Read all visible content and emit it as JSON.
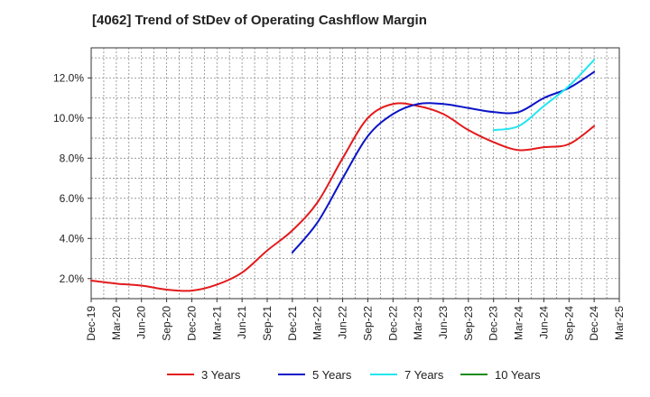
{
  "chart_data": {
    "type": "line",
    "title": "[4062]  Trend of StDev of Operating Cashflow Margin",
    "xlabel": "",
    "ylabel": "",
    "x_ticks": [
      "Dec-19",
      "Mar-20",
      "Jun-20",
      "Sep-20",
      "Dec-20",
      "Mar-21",
      "Jun-21",
      "Sep-21",
      "Dec-21",
      "Mar-22",
      "Jun-22",
      "Sep-22",
      "Dec-22",
      "Mar-23",
      "Jun-23",
      "Sep-23",
      "Dec-23",
      "Mar-24",
      "Jun-24",
      "Sep-24",
      "Dec-24",
      "Mar-25"
    ],
    "ylim": [
      1.0,
      13.5
    ],
    "y_ticks": [
      {
        "value": 2,
        "label": "2.0%"
      },
      {
        "value": 4,
        "label": "4.0%"
      },
      {
        "value": 6,
        "label": "6.0%"
      },
      {
        "value": 8,
        "label": "8.0%"
      },
      {
        "value": 10,
        "label": "10.0%"
      },
      {
        "value": 12,
        "label": "12.0%"
      }
    ],
    "grid": true,
    "legend_position": "bottom",
    "series": [
      {
        "name": "3 Years",
        "color": "#e31a1c",
        "points": [
          [
            "Dec-19",
            1.9
          ],
          [
            "Mar-20",
            1.75
          ],
          [
            "Jun-20",
            1.65
          ],
          [
            "Sep-20",
            1.45
          ],
          [
            "Dec-20",
            1.4
          ],
          [
            "Mar-21",
            1.7
          ],
          [
            "Jun-21",
            2.3
          ],
          [
            "Sep-21",
            3.4
          ],
          [
            "Dec-21",
            4.4
          ],
          [
            "Mar-22",
            5.8
          ],
          [
            "Jun-22",
            8.0
          ],
          [
            "Sep-22",
            10.0
          ],
          [
            "Dec-22",
            10.7
          ],
          [
            "Mar-23",
            10.6
          ],
          [
            "Jun-23",
            10.2
          ],
          [
            "Sep-23",
            9.4
          ],
          [
            "Dec-23",
            8.8
          ],
          [
            "Mar-24",
            8.4
          ],
          [
            "Jun-24",
            8.55
          ],
          [
            "Sep-24",
            8.7
          ],
          [
            "Dec-24",
            9.6
          ]
        ]
      },
      {
        "name": "5 Years",
        "color": "#0a14c8",
        "points": [
          [
            "Dec-21",
            3.3
          ],
          [
            "Mar-22",
            4.8
          ],
          [
            "Jun-22",
            7.0
          ],
          [
            "Sep-22",
            9.1
          ],
          [
            "Dec-22",
            10.2
          ],
          [
            "Mar-23",
            10.7
          ],
          [
            "Jun-23",
            10.7
          ],
          [
            "Sep-23",
            10.5
          ],
          [
            "Dec-23",
            10.3
          ],
          [
            "Mar-24",
            10.3
          ],
          [
            "Jun-24",
            11.0
          ],
          [
            "Sep-24",
            11.5
          ],
          [
            "Dec-24",
            12.3
          ]
        ]
      },
      {
        "name": "7 Years",
        "color": "#22e5f0",
        "points": [
          [
            "Dec-23",
            9.4
          ],
          [
            "Mar-24",
            9.6
          ],
          [
            "Jun-24",
            10.6
          ],
          [
            "Sep-24",
            11.6
          ],
          [
            "Dec-24",
            12.9
          ]
        ]
      },
      {
        "name": "10 Years",
        "color": "#1a8c1a",
        "points": []
      }
    ]
  }
}
